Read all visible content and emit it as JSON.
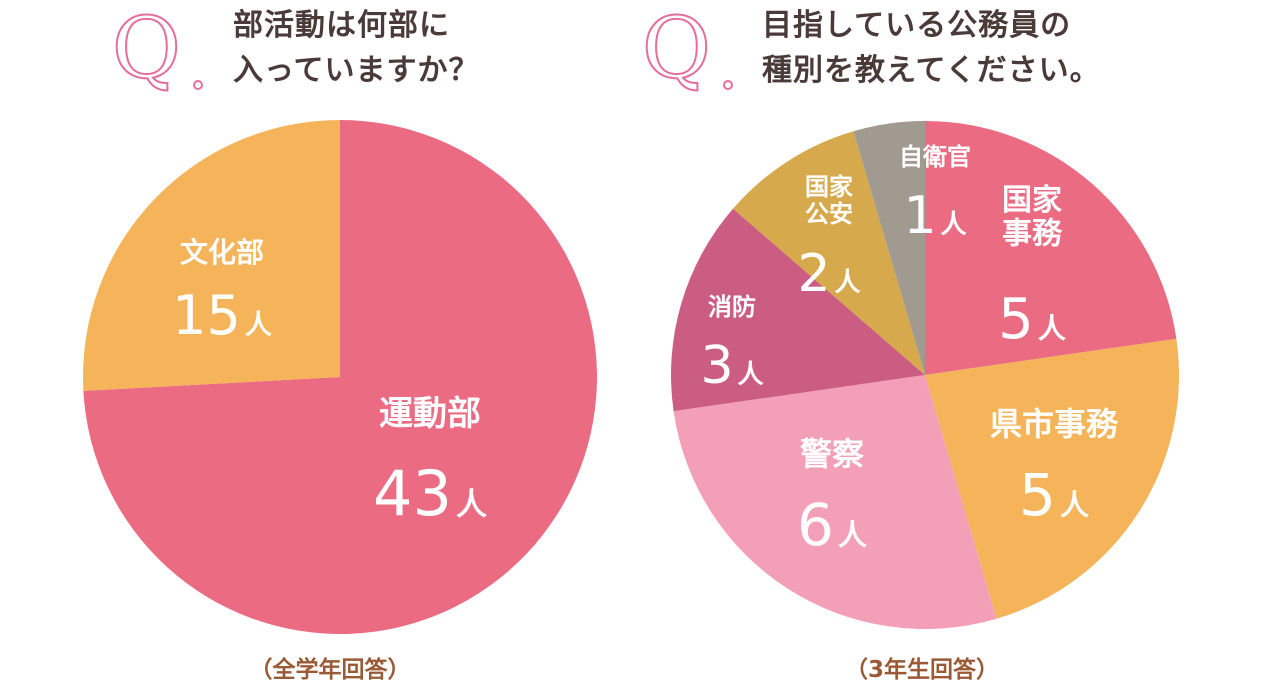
{
  "left": {
    "q_letter": "Q",
    "question_lines": [
      "部活動は何部に",
      "入っていますか？"
    ],
    "note": "（全学年回答）"
  },
  "right": {
    "q_letter": "Q",
    "question_lines": [
      "目指している公務員の",
      "種別を教えてください。"
    ],
    "note": "（3年生回答）"
  },
  "chart_data": [
    {
      "type": "pie",
      "unit": "人",
      "slices": [
        {
          "label_lines": [
            "運動部"
          ],
          "value": 43,
          "color": "#eb6c82"
        },
        {
          "label_lines": [
            "文化部"
          ],
          "value": 15,
          "color": "#f5b45a"
        }
      ]
    },
    {
      "type": "pie",
      "unit": "人",
      "slices": [
        {
          "label_lines": [
            "国家",
            "事務"
          ],
          "value": 5,
          "color": "#eb6c82"
        },
        {
          "label_lines": [
            "県市事務"
          ],
          "value": 5,
          "color": "#f5b45a"
        },
        {
          "label_lines": [
            "警察"
          ],
          "value": 6,
          "color": "#f29fb7"
        },
        {
          "label_lines": [
            "消防"
          ],
          "value": 3,
          "color": "#cc5d82"
        },
        {
          "label_lines": [
            "国家",
            "公安"
          ],
          "value": 2,
          "color": "#d6a94d"
        },
        {
          "label_lines": [
            "自衛官"
          ],
          "value": 1,
          "color": "#a09a90"
        }
      ]
    }
  ]
}
